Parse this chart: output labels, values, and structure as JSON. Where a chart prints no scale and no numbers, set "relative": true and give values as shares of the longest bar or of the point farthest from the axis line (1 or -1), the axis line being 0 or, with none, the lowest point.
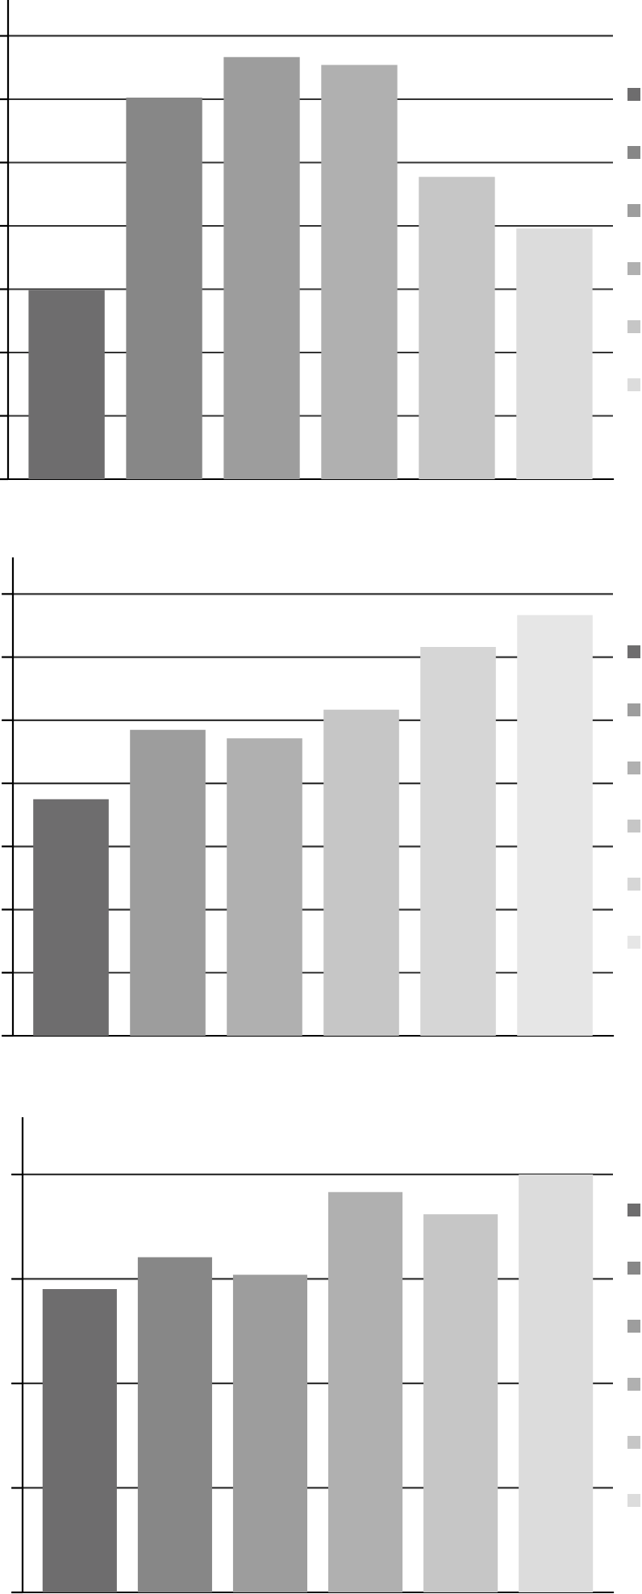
{
  "chart_data": [
    {
      "type": "bar",
      "relative": true,
      "categories": [
        null,
        null,
        null,
        null,
        null,
        null
      ],
      "values": [
        0.448,
        0.904,
        1,
        0.981,
        0.716,
        0.594
      ],
      "colors": [
        "#6e6d6e",
        "#878787",
        "#9d9d9d",
        "#b0b0b0",
        "#c6c6c6",
        "#dcdcdc"
      ],
      "grid": "y"
    },
    {
      "type": "bar",
      "relative": true,
      "categories": [
        null,
        null,
        null,
        null,
        null,
        null
      ],
      "values": [
        0.562,
        0.727,
        0.707,
        0.775,
        0.924,
        1
      ],
      "colors": [
        "#6e6d6e",
        "#9d9d9d",
        "#b0b0b0",
        "#c6c6c6",
        "#d6d6d6",
        "#e6e6e6"
      ],
      "grid": "y"
    },
    {
      "type": "bar",
      "relative": true,
      "categories": [
        null,
        null,
        null,
        null,
        null,
        null
      ],
      "values": [
        0.726,
        0.802,
        0.76,
        0.958,
        0.905,
        1
      ],
      "colors": [
        "#6e6d6e",
        "#878787",
        "#9d9d9d",
        "#b0b0b0",
        "#c6c6c6",
        "#dcdcdc"
      ],
      "grid": "y"
    }
  ]
}
